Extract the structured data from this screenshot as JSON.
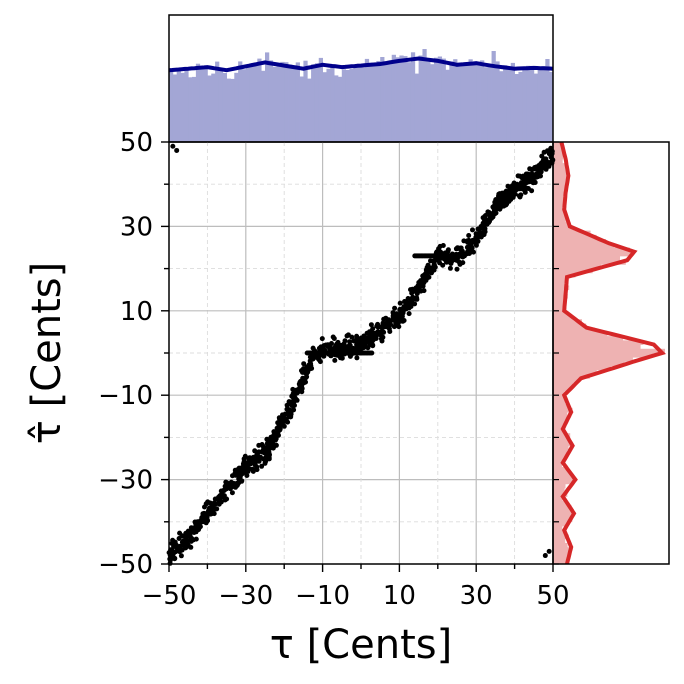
{
  "chart_data": {
    "type": "scatter",
    "title": "",
    "xlabel": "τ [Cents]",
    "ylabel": "τ̂ [Cents]",
    "xlim": [
      -50,
      50
    ],
    "ylim": [
      -50,
      50
    ],
    "x_ticks": [
      -50,
      -30,
      -10,
      10,
      30,
      50
    ],
    "y_ticks": [
      -50,
      -30,
      -10,
      10,
      30,
      50
    ],
    "x_tick_labels": [
      "−50",
      "−30",
      "−10",
      "10",
      "30",
      "50"
    ],
    "y_tick_labels": [
      "−50",
      "−30",
      "−10",
      "10",
      "30",
      "50"
    ],
    "grid": true,
    "scatter_color": "#000000",
    "top_hist_color": "#a3a6d5",
    "top_kde_color": "#00008b",
    "right_hist_color": "#eeb2b2",
    "right_kde_color": "#d62728",
    "trend": [
      {
        "x": -50,
        "y": -48
      },
      {
        "x": -45,
        "y": -44
      },
      {
        "x": -40,
        "y": -38
      },
      {
        "x": -35,
        "y": -33
      },
      {
        "x": -30,
        "y": -27
      },
      {
        "x": -25,
        "y": -24
      },
      {
        "x": -20,
        "y": -16
      },
      {
        "x": -17,
        "y": -10
      },
      {
        "x": -12,
        "y": 0
      },
      {
        "x": -5,
        "y": 1
      },
      {
        "x": 0,
        "y": 2
      },
      {
        "x": 5,
        "y": 5
      },
      {
        "x": 10,
        "y": 9
      },
      {
        "x": 15,
        "y": 15
      },
      {
        "x": 20,
        "y": 23
      },
      {
        "x": 25,
        "y": 23
      },
      {
        "x": 30,
        "y": 27
      },
      {
        "x": 35,
        "y": 35
      },
      {
        "x": 40,
        "y": 39
      },
      {
        "x": 45,
        "y": 42
      },
      {
        "x": 50,
        "y": 47
      }
    ],
    "plateaus": [
      {
        "y": 0,
        "x_from": -14,
        "x_to": 3
      },
      {
        "y": 23,
        "x_from": 14,
        "x_to": 27
      }
    ],
    "outliers": [
      {
        "x": -49,
        "y": 49
      },
      {
        "x": -48,
        "y": 48
      },
      {
        "x": 48,
        "y": -48
      },
      {
        "x": 49,
        "y": -47
      }
    ],
    "top_kde": {
      "x": [
        -50,
        -45,
        -40,
        -35,
        -30,
        -25,
        -20,
        -15,
        -10,
        -5,
        0,
        5,
        10,
        15,
        20,
        25,
        30,
        35,
        40,
        45,
        50
      ],
      "density": [
        0.92,
        0.94,
        0.96,
        0.92,
        0.97,
        1.02,
        0.98,
        0.94,
        0.99,
        0.96,
        0.98,
        1.0,
        1.04,
        1.07,
        1.04,
        0.99,
        1.01,
        0.97,
        0.94,
        0.95,
        0.94
      ]
    },
    "right_kde": {
      "y": [
        -50,
        -46,
        -42,
        -38,
        -34,
        -30,
        -26,
        -22,
        -18,
        -14,
        -10,
        -6,
        -2,
        0,
        2,
        4,
        6,
        10,
        14,
        18,
        22,
        24,
        26,
        30,
        34,
        38,
        42,
        46,
        50
      ],
      "density": [
        0.1,
        0.13,
        0.08,
        0.15,
        0.07,
        0.16,
        0.07,
        0.14,
        0.07,
        0.13,
        0.08,
        0.2,
        0.58,
        0.78,
        0.72,
        0.48,
        0.24,
        0.08,
        0.09,
        0.1,
        0.53,
        0.58,
        0.4,
        0.12,
        0.08,
        0.09,
        0.11,
        0.09,
        0.06
      ]
    }
  }
}
